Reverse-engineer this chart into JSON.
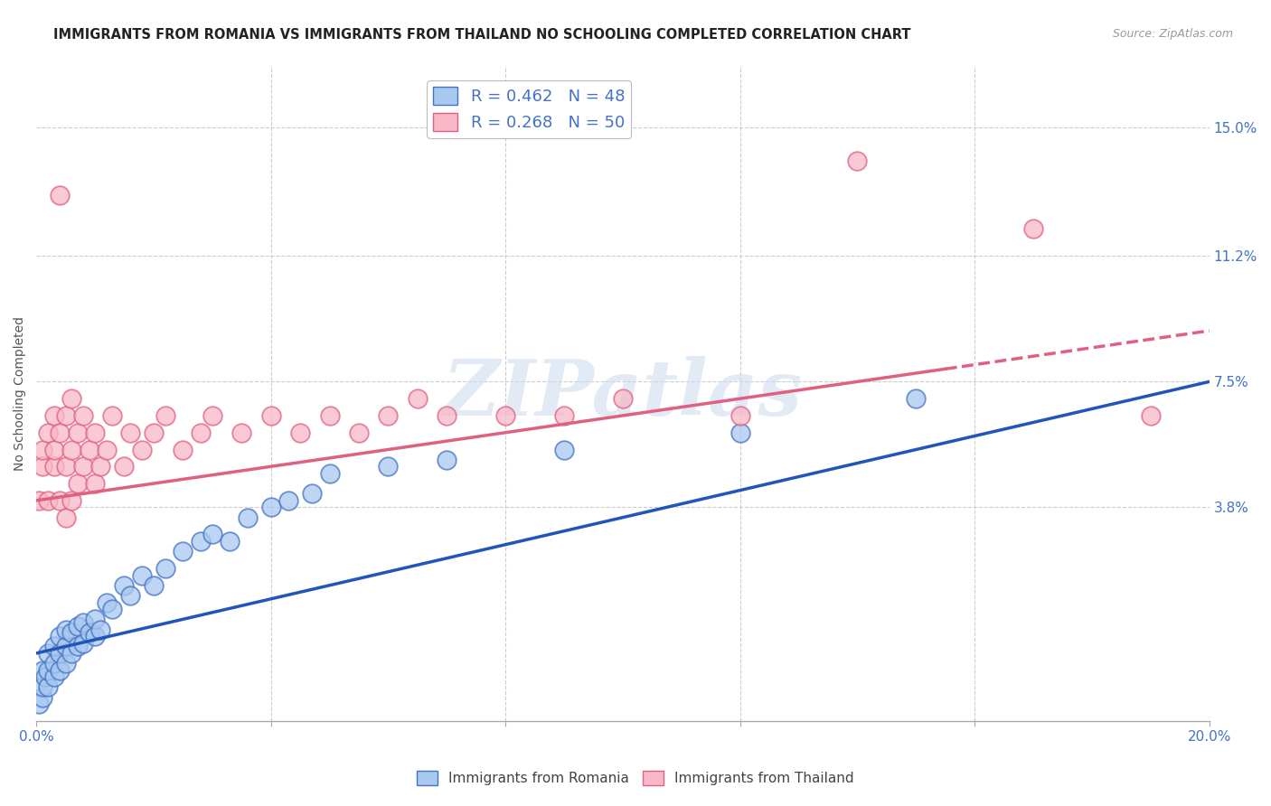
{
  "title": "IMMIGRANTS FROM ROMANIA VS IMMIGRANTS FROM THAILAND NO SCHOOLING COMPLETED CORRELATION CHART",
  "source": "Source: ZipAtlas.com",
  "ylabel": "No Schooling Completed",
  "xlim": [
    0.0,
    0.2
  ],
  "ylim": [
    -0.025,
    0.168
  ],
  "yticks": [
    0.038,
    0.075,
    0.112,
    0.15
  ],
  "ytick_labels": [
    "3.8%",
    "7.5%",
    "11.2%",
    "15.0%"
  ],
  "romania_color": "#a8c8f0",
  "thailand_color": "#f8b8c8",
  "romania_edge": "#4472c4",
  "thailand_edge": "#e06080",
  "trend_romania_color": "#2255bb",
  "trend_thailand_color": "#e06080",
  "romania_R": 0.462,
  "romania_N": 48,
  "thailand_R": 0.268,
  "thailand_N": 50,
  "romania_x": [
    0.0005,
    0.001,
    0.001,
    0.001,
    0.0015,
    0.002,
    0.002,
    0.002,
    0.003,
    0.003,
    0.003,
    0.004,
    0.004,
    0.004,
    0.005,
    0.005,
    0.005,
    0.006,
    0.006,
    0.007,
    0.007,
    0.008,
    0.008,
    0.009,
    0.01,
    0.01,
    0.011,
    0.012,
    0.013,
    0.015,
    0.016,
    0.018,
    0.02,
    0.022,
    0.025,
    0.028,
    0.03,
    0.033,
    0.036,
    0.04,
    0.043,
    0.047,
    0.05,
    0.06,
    0.07,
    0.09,
    0.12,
    0.15
  ],
  "romania_y": [
    -0.02,
    -0.018,
    -0.015,
    -0.01,
    -0.012,
    -0.015,
    -0.01,
    -0.005,
    -0.012,
    -0.008,
    -0.003,
    -0.01,
    -0.005,
    0.0,
    -0.008,
    -0.003,
    0.002,
    -0.005,
    0.001,
    -0.003,
    0.003,
    -0.002,
    0.004,
    0.001,
    0.0,
    0.005,
    0.002,
    0.01,
    0.008,
    0.015,
    0.012,
    0.018,
    0.015,
    0.02,
    0.025,
    0.028,
    0.03,
    0.028,
    0.035,
    0.038,
    0.04,
    0.042,
    0.048,
    0.05,
    0.052,
    0.055,
    0.06,
    0.07
  ],
  "thailand_x": [
    0.0005,
    0.001,
    0.001,
    0.002,
    0.002,
    0.003,
    0.003,
    0.003,
    0.004,
    0.004,
    0.005,
    0.005,
    0.005,
    0.006,
    0.006,
    0.006,
    0.007,
    0.007,
    0.008,
    0.008,
    0.009,
    0.01,
    0.01,
    0.011,
    0.012,
    0.013,
    0.015,
    0.016,
    0.018,
    0.02,
    0.022,
    0.025,
    0.028,
    0.03,
    0.035,
    0.04,
    0.045,
    0.05,
    0.055,
    0.06,
    0.065,
    0.07,
    0.08,
    0.09,
    0.1,
    0.12,
    0.14,
    0.17,
    0.19,
    0.004
  ],
  "thailand_y": [
    0.04,
    0.05,
    0.055,
    0.04,
    0.06,
    0.05,
    0.055,
    0.065,
    0.04,
    0.06,
    0.035,
    0.05,
    0.065,
    0.04,
    0.055,
    0.07,
    0.045,
    0.06,
    0.05,
    0.065,
    0.055,
    0.045,
    0.06,
    0.05,
    0.055,
    0.065,
    0.05,
    0.06,
    0.055,
    0.06,
    0.065,
    0.055,
    0.06,
    0.065,
    0.06,
    0.065,
    0.06,
    0.065,
    0.06,
    0.065,
    0.07,
    0.065,
    0.065,
    0.065,
    0.07,
    0.065,
    0.14,
    0.12,
    0.065,
    0.13
  ],
  "watermark": "ZIPatlas",
  "background_color": "#ffffff",
  "grid_color": "#cccccc",
  "trend_rom_x0": 0.0,
  "trend_rom_y0": -0.005,
  "trend_rom_x1": 0.2,
  "trend_rom_y1": 0.075,
  "trend_thai_x0": 0.0,
  "trend_thai_y0": 0.04,
  "trend_thai_x1": 0.2,
  "trend_thai_y1": 0.09,
  "trend_thai_dash_start": 0.155
}
